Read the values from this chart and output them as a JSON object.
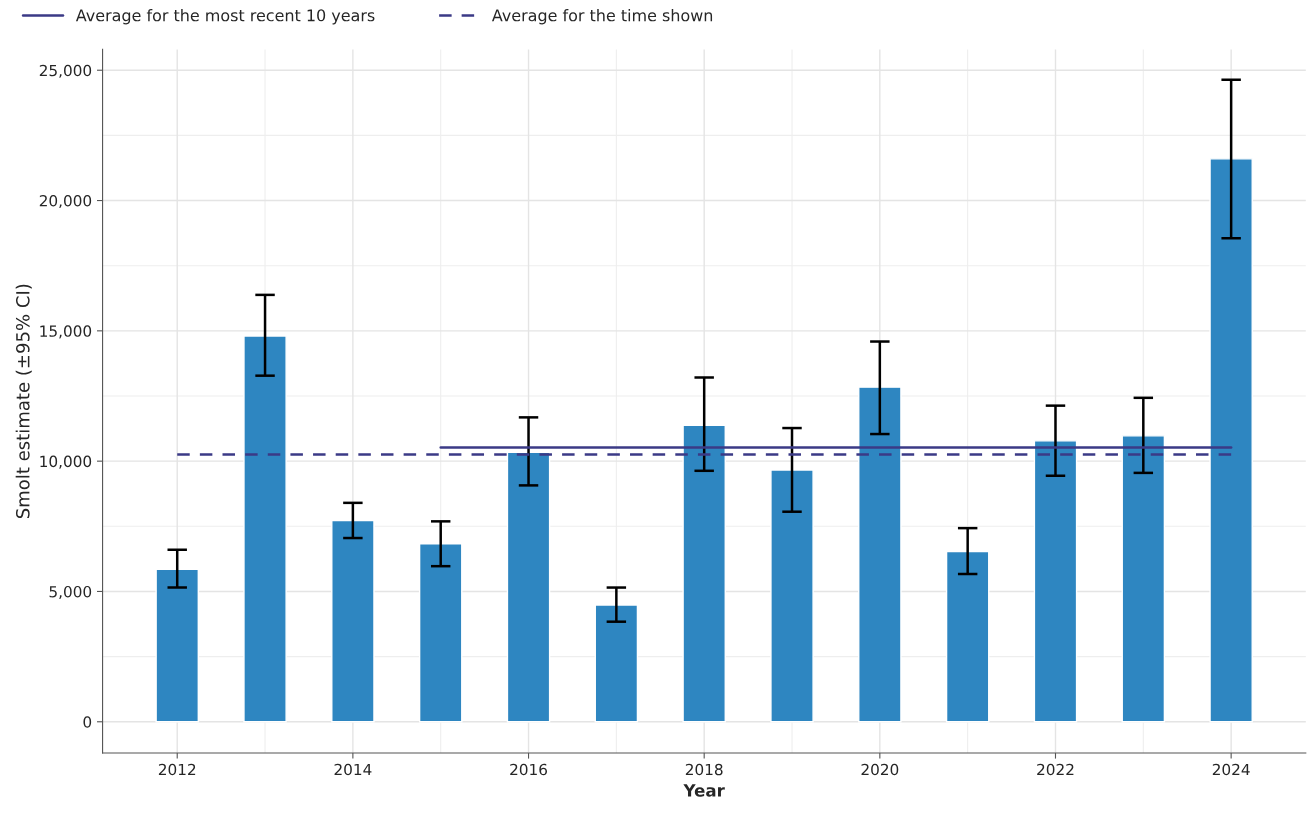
{
  "chart_data": {
    "type": "bar",
    "xlabel": "Year",
    "ylabel": "Smolt estimate (±95% CI)",
    "xlim": [
      2011.15,
      2024.85
    ],
    "xticks": [
      2012,
      2014,
      2016,
      2018,
      2020,
      2022,
      2024
    ],
    "ylim": [
      -1200,
      25800
    ],
    "yticks": [
      {
        "value": 0,
        "label": "0"
      },
      {
        "value": 5000,
        "label": "5,000"
      },
      {
        "value": 10000,
        "label": "10,000"
      },
      {
        "value": 15000,
        "label": "15,000"
      },
      {
        "value": 20000,
        "label": "20,000"
      },
      {
        "value": 25000,
        "label": "25,000"
      }
    ],
    "grid": true,
    "legend": "top left",
    "series": [
      {
        "color": "#2e86c1",
        "x": [
          2012,
          2013,
          2014,
          2015,
          2016,
          2017,
          2018,
          2019,
          2020,
          2021,
          2022,
          2023,
          2024
        ],
        "values": [
          5850,
          14800,
          7720,
          6830,
          10340,
          4480,
          11380,
          9660,
          12840,
          6530,
          10780,
          10970,
          21600
        ],
        "errors": [
          [
            5150,
            6600
          ],
          [
            13280,
            16380
          ],
          [
            7050,
            8400
          ],
          [
            5970,
            7690
          ],
          [
            9070,
            11680
          ],
          [
            3840,
            5150
          ],
          [
            9630,
            13210
          ],
          [
            8060,
            11270
          ],
          [
            11040,
            14590
          ],
          [
            5670,
            7430
          ],
          [
            9440,
            12130
          ],
          [
            9550,
            12430
          ],
          [
            18550,
            24630
          ]
        ]
      },
      {
        "type": "line",
        "name": "Average for the most recent 10 years",
        "color": "#3b3a86",
        "line_style": "solid",
        "x": [
          2015,
          2024
        ],
        "values": [
          10520,
          10520
        ]
      },
      {
        "type": "line",
        "name": "Average for the time shown",
        "color": "#3b3a86",
        "line_style": "dashed",
        "x": [
          2012,
          2024
        ],
        "values": [
          10260,
          10260
        ]
      }
    ]
  }
}
